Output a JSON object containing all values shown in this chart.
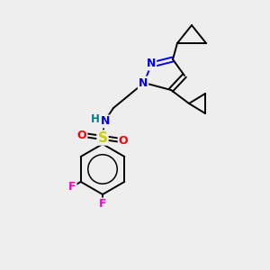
{
  "background_color": "#eeeeee",
  "bond_color": "#000000",
  "atom_colors": {
    "N": "#0000ee",
    "H": "#008080",
    "S": "#cccc00",
    "O": "#ff0000",
    "F": "#ff00cc",
    "C": "#000000"
  },
  "figsize": [
    3.0,
    3.0
  ],
  "dpi": 100,
  "lw": 1.4
}
